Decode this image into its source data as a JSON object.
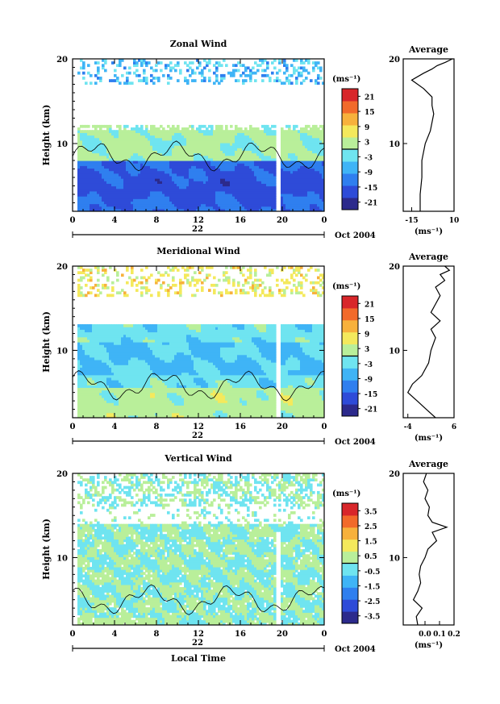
{
  "chart_data": [
    {
      "type": "heatmap",
      "title": "Zonal Wind",
      "ylabel": "Height (km)",
      "ylim": [
        2,
        20
      ],
      "yticks": [
        "10",
        "20"
      ],
      "xticks": [
        "0",
        "4",
        "8",
        "12",
        "16",
        "20",
        "0"
      ],
      "date_tick": "22",
      "date_label": "Oct 2004",
      "colorbar": {
        "unit": "(ms⁻¹)",
        "ticks": [
          "21",
          "15",
          "9",
          "3",
          "-3",
          "-9",
          "-15",
          "-21"
        ],
        "range": [
          -24,
          24
        ]
      },
      "profile": {
        "title": "Average",
        "xticks": [
          "-15",
          "10"
        ],
        "xlim": [
          -20,
          10
        ],
        "xlabel": "(ms⁻¹)",
        "points": [
          [
            -10,
            2
          ],
          [
            -10,
            4
          ],
          [
            -9,
            6
          ],
          [
            -9,
            8
          ],
          [
            -7,
            10
          ],
          [
            -4,
            11.5
          ],
          [
            -3,
            12.5
          ],
          [
            -2,
            13.5
          ],
          [
            -3,
            14.5
          ],
          [
            -3,
            15.5
          ],
          [
            -8,
            16.5
          ],
          [
            -15,
            17.5
          ],
          [
            -8,
            18.3
          ],
          [
            -3,
            18.8
          ],
          [
            0,
            19.2
          ],
          [
            5,
            19.6
          ],
          [
            9,
            20
          ]
        ]
      }
    },
    {
      "type": "heatmap",
      "title": "Meridional Wind",
      "ylabel": "Height (km)",
      "ylim": [
        2,
        20
      ],
      "yticks": [
        "10",
        "20"
      ],
      "xticks": [
        "0",
        "4",
        "8",
        "12",
        "16",
        "20",
        "0"
      ],
      "date_tick": "22",
      "date_label": "Oct 2004",
      "colorbar": {
        "unit": "(ms⁻¹)",
        "ticks": [
          "21",
          "15",
          "9",
          "3",
          "-3",
          "-9",
          "-15",
          "-21"
        ],
        "range": [
          -24,
          24
        ]
      },
      "profile": {
        "title": "Average",
        "xticks": [
          "-4",
          "6"
        ],
        "xlim": [
          -5,
          6
        ],
        "xlabel": "(ms⁻¹)",
        "points": [
          [
            2,
            2
          ],
          [
            0,
            3
          ],
          [
            -2,
            4
          ],
          [
            -4,
            5
          ],
          [
            -3,
            6
          ],
          [
            -1,
            7
          ],
          [
            0.5,
            8.5
          ],
          [
            1,
            10
          ],
          [
            2,
            11.5
          ],
          [
            1,
            12.5
          ],
          [
            3,
            13.5
          ],
          [
            1,
            14.5
          ],
          [
            2,
            15.5
          ],
          [
            3,
            16.5
          ],
          [
            2,
            17.5
          ],
          [
            4,
            18.3
          ],
          [
            3,
            19
          ],
          [
            5,
            19.5
          ],
          [
            4,
            20
          ]
        ]
      }
    },
    {
      "type": "heatmap",
      "title": "Vertical Wind",
      "ylabel": "Height (km)",
      "ylim": [
        2,
        20
      ],
      "yticks": [
        "10",
        "20"
      ],
      "xticks": [
        "0",
        "4",
        "8",
        "12",
        "16",
        "20",
        "0"
      ],
      "date_tick": "22",
      "date_label": "Oct 2004",
      "xlabel": "Local Time",
      "colorbar": {
        "unit": "(ms⁻¹)",
        "ticks": [
          "3.5",
          "2.5",
          "1.5",
          "0.5",
          "-0.5",
          "-1.5",
          "-2.5",
          "-3.5"
        ],
        "range": [
          -4,
          4
        ]
      },
      "profile": {
        "title": "Average",
        "xticks": [
          "0.0",
          "0.1",
          "0.2"
        ],
        "xlim": [
          -0.15,
          0.2
        ],
        "xlabel": "(ms⁻¹)",
        "points": [
          [
            -0.05,
            2
          ],
          [
            -0.06,
            3
          ],
          [
            -0.02,
            4
          ],
          [
            -0.08,
            5
          ],
          [
            -0.05,
            6
          ],
          [
            -0.03,
            7
          ],
          [
            -0.04,
            8
          ],
          [
            -0.03,
            9
          ],
          [
            0.0,
            10
          ],
          [
            0.02,
            11
          ],
          [
            0.08,
            12
          ],
          [
            0.05,
            13
          ],
          [
            0.15,
            13.6
          ],
          [
            0.05,
            14.2
          ],
          [
            0.02,
            15
          ],
          [
            0.03,
            16
          ],
          [
            0.0,
            17
          ],
          [
            0.02,
            18
          ],
          [
            -0.01,
            19
          ],
          [
            0.01,
            20
          ]
        ]
      }
    }
  ]
}
